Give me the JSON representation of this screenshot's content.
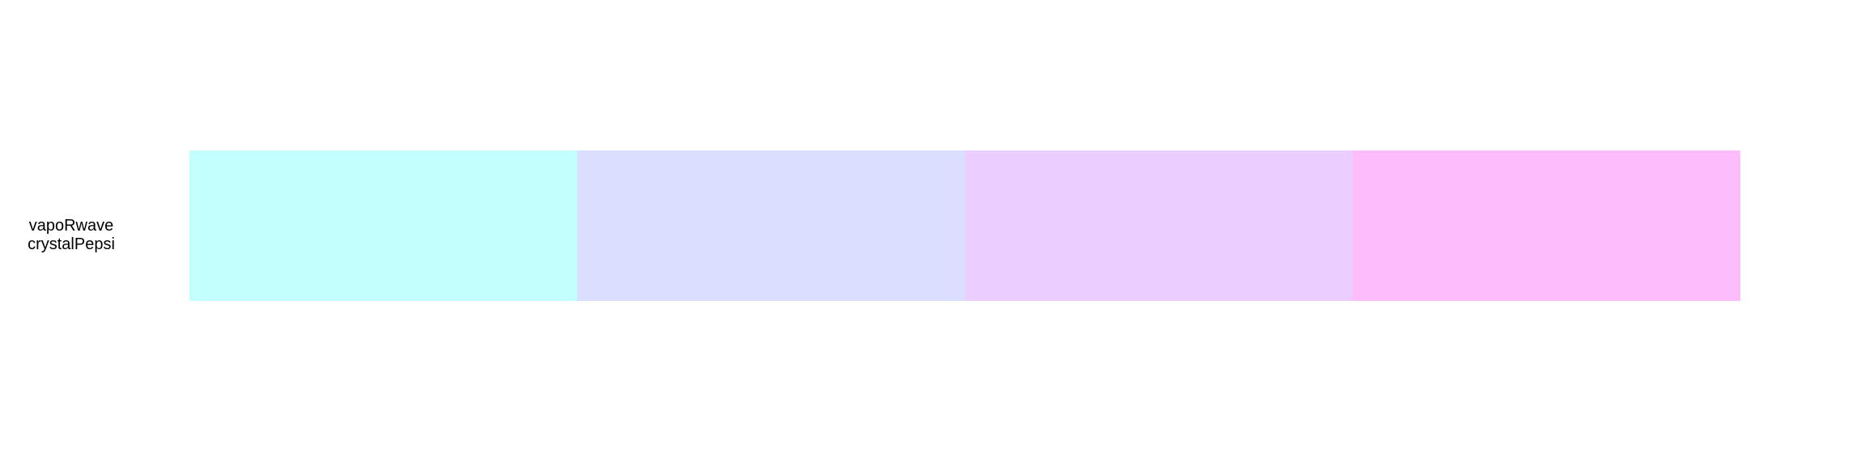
{
  "palette": {
    "label_line1": "vapoRwave",
    "label_line2": "crystalPepsi",
    "swatches": [
      {
        "color": "#C2FFFD"
      },
      {
        "color": "#DBDFFF"
      },
      {
        "color": "#EBCEFF"
      },
      {
        "color": "#FDBDFC"
      }
    ]
  }
}
